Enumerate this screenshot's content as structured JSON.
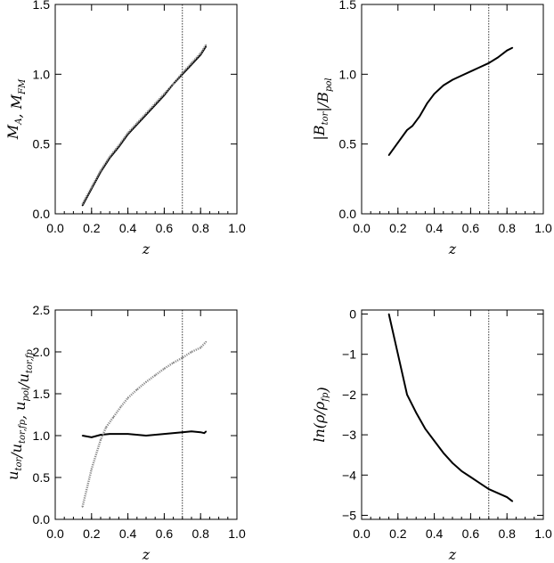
{
  "chart_data": [
    {
      "type": "line",
      "xlabel": "z",
      "ylabel_main": "M",
      "ylabel_sub1": "A",
      "ylabel_sep": ",  M",
      "ylabel_sub2": "FM",
      "xlim": [
        0.0,
        1.0
      ],
      "ylim": [
        0.0,
        1.5
      ],
      "xticks": [
        "0.0",
        "0.2",
        "0.4",
        "0.6",
        "0.8",
        "1.0"
      ],
      "yticks": [
        "0.0",
        "0.5",
        "1.0",
        "1.5"
      ],
      "vline_x": 0.7,
      "series": [
        {
          "style": "solid",
          "x": [
            0.15,
            0.2,
            0.25,
            0.3,
            0.35,
            0.4,
            0.45,
            0.5,
            0.55,
            0.6,
            0.65,
            0.7,
            0.75,
            0.8,
            0.83
          ],
          "y": [
            0.06,
            0.18,
            0.3,
            0.4,
            0.48,
            0.57,
            0.64,
            0.71,
            0.78,
            0.85,
            0.93,
            1.0,
            1.07,
            1.14,
            1.2
          ]
        },
        {
          "style": "dotted",
          "x": [
            0.15,
            0.2,
            0.25,
            0.3,
            0.35,
            0.4,
            0.45,
            0.5,
            0.55,
            0.6,
            0.65,
            0.7,
            0.75,
            0.8,
            0.83
          ],
          "y": [
            0.07,
            0.19,
            0.31,
            0.41,
            0.49,
            0.58,
            0.65,
            0.72,
            0.79,
            0.86,
            0.93,
            1.01,
            1.08,
            1.15,
            1.21
          ]
        }
      ]
    },
    {
      "type": "line",
      "xlabel": "z",
      "ylabel_main": "|B",
      "ylabel_sub1": "tor",
      "ylabel_sep": "|/B",
      "ylabel_sub2": "pol",
      "xlim": [
        0.0,
        1.0
      ],
      "ylim": [
        0.0,
        1.5
      ],
      "xticks": [
        "0.0",
        "0.2",
        "0.4",
        "0.6",
        "0.8",
        "1.0"
      ],
      "yticks": [
        "0.0",
        "0.5",
        "1.0",
        "1.5"
      ],
      "vline_x": 0.7,
      "series": [
        {
          "style": "solid",
          "x": [
            0.15,
            0.2,
            0.25,
            0.28,
            0.32,
            0.36,
            0.4,
            0.45,
            0.5,
            0.55,
            0.6,
            0.65,
            0.7,
            0.75,
            0.8,
            0.83
          ],
          "y": [
            0.42,
            0.51,
            0.6,
            0.63,
            0.7,
            0.79,
            0.86,
            0.92,
            0.96,
            0.99,
            1.02,
            1.05,
            1.08,
            1.12,
            1.17,
            1.19
          ]
        }
      ]
    },
    {
      "type": "line",
      "xlabel": "z",
      "ylabel_parts": [
        {
          "t": "u",
          "sub": "tor"
        },
        {
          "t": "/u",
          "sub": "tor,fp"
        },
        {
          "t": ",  u",
          "sub": "pol"
        },
        {
          "t": "/u",
          "sub": "tor,fp"
        }
      ],
      "xlim": [
        0.0,
        1.0
      ],
      "ylim": [
        0.0,
        2.5
      ],
      "xticks": [
        "0.0",
        "0.2",
        "0.4",
        "0.6",
        "0.8",
        "1.0"
      ],
      "yticks": [
        "0.0",
        "0.5",
        "1.0",
        "1.5",
        "2.0",
        "2.5"
      ],
      "vline_x": 0.7,
      "series": [
        {
          "style": "solid",
          "x": [
            0.15,
            0.2,
            0.25,
            0.3,
            0.4,
            0.5,
            0.6,
            0.7,
            0.75,
            0.8,
            0.82,
            0.83
          ],
          "y": [
            1.0,
            0.98,
            1.01,
            1.02,
            1.02,
            1.0,
            1.02,
            1.04,
            1.05,
            1.04,
            1.03,
            1.05
          ]
        },
        {
          "style": "dotted",
          "x": [
            0.15,
            0.2,
            0.25,
            0.28,
            0.32,
            0.36,
            0.4,
            0.45,
            0.5,
            0.55,
            0.6,
            0.65,
            0.7,
            0.75,
            0.8,
            0.83
          ],
          "y": [
            0.15,
            0.6,
            0.95,
            1.1,
            1.22,
            1.34,
            1.45,
            1.55,
            1.64,
            1.72,
            1.8,
            1.87,
            1.93,
            2.0,
            2.05,
            2.12
          ]
        }
      ]
    },
    {
      "type": "line",
      "xlabel": "z",
      "ylabel_parts": [
        {
          "t": "ln(ρ/ρ",
          "sub": "fp"
        },
        {
          "t": ")",
          "sub": ""
        }
      ],
      "xlim": [
        0.0,
        1.0
      ],
      "ylim": [
        -5.1,
        0.1
      ],
      "xticks": [
        "0.0",
        "0.2",
        "0.4",
        "0.6",
        "0.8",
        "1.0"
      ],
      "ytick_values": [
        0,
        -1,
        -2,
        -3,
        -4,
        -5
      ],
      "yticks": [
        "0",
        "−1",
        "−2",
        "−3",
        "−4",
        "−5"
      ],
      "vline_x": 0.7,
      "series": [
        {
          "style": "solid",
          "x": [
            0.15,
            0.2,
            0.25,
            0.3,
            0.35,
            0.4,
            0.45,
            0.5,
            0.55,
            0.6,
            0.65,
            0.7,
            0.75,
            0.8,
            0.83
          ],
          "y": [
            0.0,
            -1.0,
            -2.0,
            -2.45,
            -2.85,
            -3.15,
            -3.45,
            -3.7,
            -3.9,
            -4.05,
            -4.2,
            -4.35,
            -4.45,
            -4.55,
            -4.65
          ]
        }
      ]
    }
  ]
}
